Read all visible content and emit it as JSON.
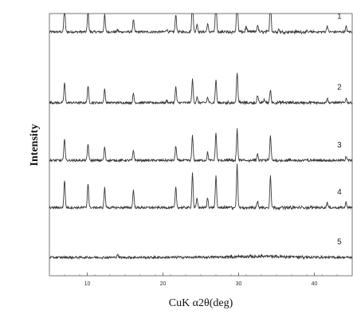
{
  "chart_data": {
    "type": "line",
    "title": "",
    "xlabel": "CuK α2θ(deg)",
    "ylabel": "Intensity",
    "xlim": [
      5,
      45
    ],
    "x_ticks": [
      "10",
      "20",
      "30",
      "40"
    ],
    "x_tick_values": [
      10,
      20,
      30,
      40
    ],
    "y_ticks": "none",
    "grid": false,
    "legend": "none",
    "line_color": "#3a3a3a",
    "series": [
      {
        "label": "1",
        "baseline": 0.93,
        "peaks": [
          [
            7.0,
            0.62
          ],
          [
            10.1,
            0.46
          ],
          [
            12.3,
            0.38
          ],
          [
            14.0,
            0.04
          ],
          [
            16.1,
            0.28
          ],
          [
            20.5,
            0.06
          ],
          [
            21.7,
            0.4
          ],
          [
            23.9,
            0.81
          ],
          [
            24.5,
            0.18
          ],
          [
            25.9,
            0.18
          ],
          [
            27.0,
            0.74
          ],
          [
            29.8,
            1.0
          ],
          [
            31.0,
            0.12
          ],
          [
            32.5,
            0.16
          ],
          [
            34.2,
            0.82
          ],
          [
            35.3,
            0.06
          ],
          [
            41.7,
            0.14
          ],
          [
            44.2,
            0.12
          ]
        ]
      },
      {
        "label": "2",
        "baseline": 0.66,
        "peaks": [
          [
            7.0,
            0.45
          ],
          [
            10.1,
            0.38
          ],
          [
            12.3,
            0.3
          ],
          [
            16.1,
            0.2
          ],
          [
            20.5,
            0.05
          ],
          [
            21.7,
            0.35
          ],
          [
            23.9,
            0.52
          ],
          [
            24.5,
            0.12
          ],
          [
            25.9,
            0.12
          ],
          [
            27.0,
            0.52
          ],
          [
            29.8,
            0.7
          ],
          [
            32.5,
            0.15
          ],
          [
            33.4,
            0.08
          ],
          [
            34.2,
            0.3
          ],
          [
            41.7,
            0.1
          ],
          [
            44.2,
            0.1
          ]
        ]
      },
      {
        "label": "3",
        "baseline": 0.44,
        "peaks": [
          [
            7.0,
            0.5
          ],
          [
            10.1,
            0.37
          ],
          [
            12.3,
            0.3
          ],
          [
            16.1,
            0.22
          ],
          [
            21.7,
            0.33
          ],
          [
            23.9,
            0.55
          ],
          [
            25.9,
            0.18
          ],
          [
            27.0,
            0.62
          ],
          [
            29.8,
            0.68
          ],
          [
            32.5,
            0.12
          ],
          [
            34.2,
            0.55
          ],
          [
            44.2,
            0.1
          ]
        ]
      },
      {
        "label": "4",
        "baseline": 0.26,
        "peaks": [
          [
            7.0,
            0.62
          ],
          [
            10.1,
            0.55
          ],
          [
            12.3,
            0.45
          ],
          [
            16.1,
            0.4
          ],
          [
            21.7,
            0.45
          ],
          [
            23.9,
            0.78
          ],
          [
            24.5,
            0.2
          ],
          [
            25.9,
            0.22
          ],
          [
            27.0,
            0.7
          ],
          [
            29.8,
            0.95
          ],
          [
            32.5,
            0.15
          ],
          [
            34.2,
            0.72
          ],
          [
            41.7,
            0.12
          ],
          [
            44.2,
            0.12
          ]
        ]
      },
      {
        "label": "5",
        "baseline": 0.07,
        "peaks": [
          [
            14.0,
            0.07
          ],
          [
            22.0,
            0.01
          ],
          [
            33.0,
            0.02
          ],
          [
            37.0,
            0.015
          ]
        ]
      }
    ]
  }
}
